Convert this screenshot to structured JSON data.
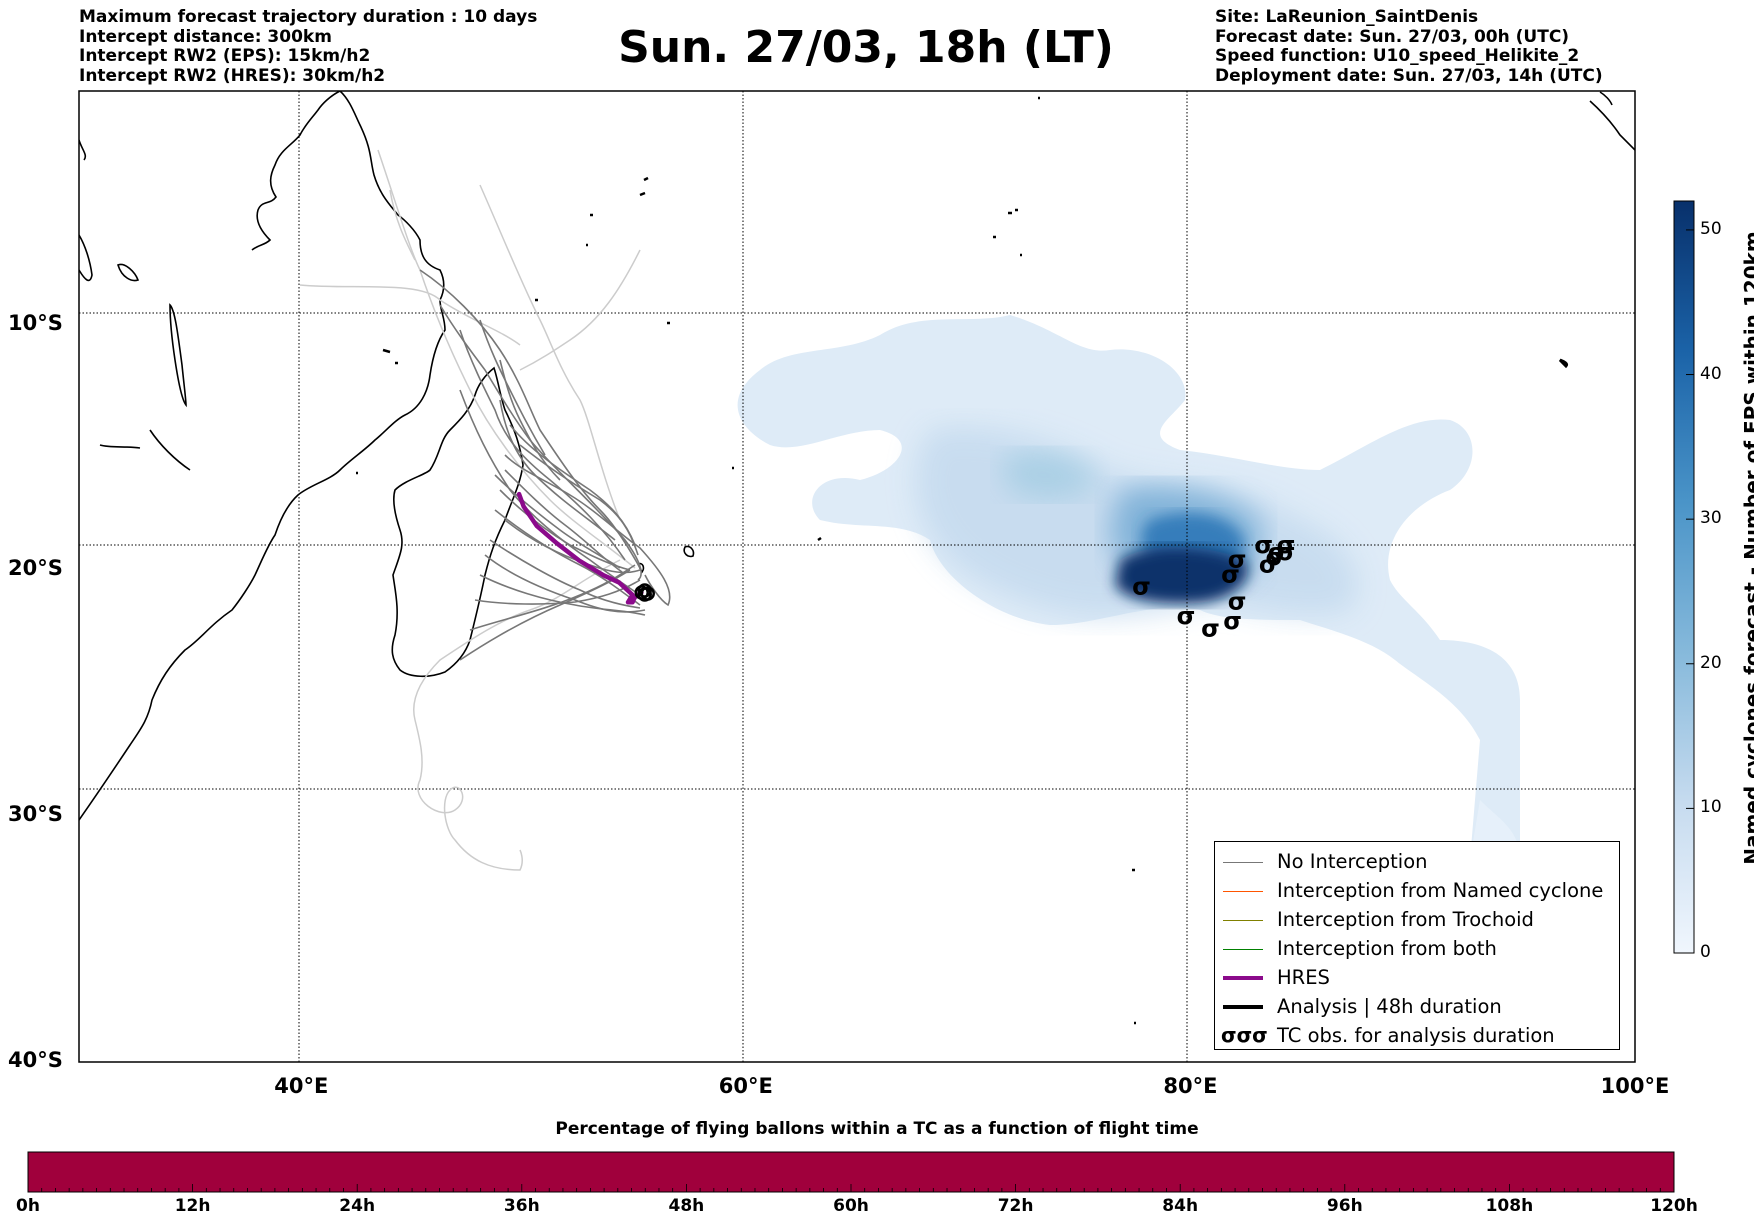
{
  "header": {
    "left_lines": [
      "Maximum forecast trajectory duration : 10 days",
      "Intercept distance: 300km",
      "Intercept RW2 (EPS):  15km/h2",
      "Intercept RW2 (HRES): 30km/h2"
    ],
    "title": "Sun. 27/03, 18h (LT)",
    "right_lines": [
      "Site: LaReunion_SaintDenis",
      "Forecast date: Sun. 27/03, 00h (UTC)",
      "Speed function: U10_speed_Helikite_2",
      "Deployment date: Sun. 27/03, 14h (UTC)"
    ]
  },
  "map": {
    "lon_range": [
      30,
      100
    ],
    "lat_range": [
      -40,
      -0.5
    ],
    "lat_labels": [
      "10°S",
      "20°S",
      "30°S",
      "40°S"
    ],
    "lat_values": [
      -10,
      -20,
      -30,
      -40
    ],
    "lon_labels": [
      "40°E",
      "60°E",
      "80°E",
      "100°E"
    ],
    "lon_values": [
      40,
      60,
      80,
      100
    ],
    "grid": "dotted",
    "site": {
      "lon": 55.45,
      "lat": -20.9
    },
    "hres_track": [
      [
        55.3,
        -20.9
      ],
      [
        55.0,
        -21.1
      ],
      [
        54.9,
        -21.3
      ],
      [
        54.7,
        -21.3
      ],
      [
        54.9,
        -21.0
      ],
      [
        54.3,
        -20.5
      ],
      [
        53.6,
        -20.2
      ],
      [
        52.5,
        -19.6
      ],
      [
        51.5,
        -18.9
      ],
      [
        50.6,
        -18.2
      ],
      [
        50.0,
        -17.4
      ],
      [
        49.8,
        -16.9
      ]
    ],
    "tc_obs": [
      [
        77.8,
        -20.7
      ],
      [
        79.8,
        -21.9
      ],
      [
        80.9,
        -22.4
      ],
      [
        81.9,
        -22.1
      ],
      [
        82.1,
        -21.3
      ],
      [
        82.1,
        -19.6
      ],
      [
        81.8,
        -20.2
      ],
      [
        83.3,
        -19.0
      ],
      [
        83.9,
        -19.3
      ],
      [
        84.3,
        -19.3
      ],
      [
        84.3,
        -19.0
      ],
      [
        83.8,
        -19.5
      ],
      [
        83.5,
        -19.8
      ]
    ],
    "colors": {
      "hres": "#8b0a8b",
      "no_interception": "#777777",
      "named": "#ff5500",
      "trochoid": "#808000",
      "both": "#008000",
      "analysis": "#000000"
    }
  },
  "legend": {
    "items": [
      {
        "label": "No Interception",
        "style": "thin",
        "color": "#777777"
      },
      {
        "label": "Interception from Named cyclone",
        "style": "thin",
        "color": "#ff5500"
      },
      {
        "label": "Interception from Trochoid",
        "style": "thin",
        "color": "#808000"
      },
      {
        "label": "Interception from both",
        "style": "thin",
        "color": "#008000"
      },
      {
        "label": "HRES",
        "style": "thick",
        "color": "#8b0a8b"
      },
      {
        "label": "Analysis | 48h duration",
        "style": "thick",
        "color": "#000000"
      },
      {
        "label": "TC obs. for analysis duration",
        "style": "symbol",
        "color": "#000000",
        "symbol": "σσσ"
      }
    ]
  },
  "colorbar": {
    "label": "Named cyclones forecast - Number of EPS within 120km",
    "ticks": [
      "0",
      "10",
      "20",
      "30",
      "40",
      "50"
    ],
    "tick_values": [
      0,
      10,
      20,
      30,
      40,
      50
    ],
    "range": [
      0,
      52
    ],
    "colors": [
      "#deebf7",
      "#08306b"
    ]
  },
  "time_bar": {
    "title": "Percentage of flying ballons within a TC as a function of flight time",
    "ticks": [
      "0h",
      "12h",
      "24h",
      "36h",
      "48h",
      "60h",
      "72h",
      "84h",
      "96h",
      "108h",
      "120h"
    ],
    "fill_color": "#a0003c"
  }
}
